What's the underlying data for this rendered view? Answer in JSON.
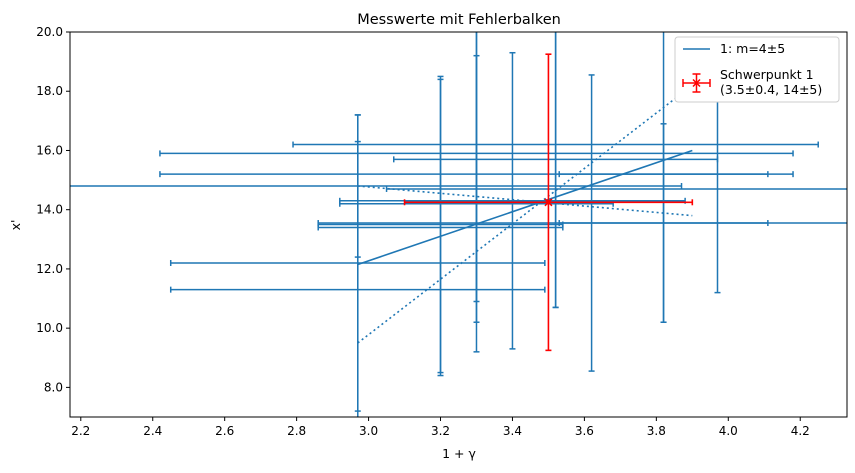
{
  "chart_data": {
    "type": "scatter",
    "title": "Messwerte mit Fehlerbalken",
    "xlabel": "1 + γ",
    "ylabel": "x'",
    "xlim": [
      2.17,
      4.33
    ],
    "ylim": [
      7.0,
      20.0
    ],
    "x_ticks": [
      2.2,
      2.4,
      2.6,
      2.8,
      3.0,
      3.2,
      3.4,
      3.6,
      3.8,
      4.0,
      4.2
    ],
    "y_ticks": [
      8.0,
      10.0,
      12.0,
      14.0,
      16.0,
      18.0,
      20.0
    ],
    "grid": false,
    "legend_position": "top-right",
    "colors": {
      "series": "#1f77b4",
      "centroid": "#ff0000"
    },
    "measurements": [
      {
        "x": 2.97,
        "y": 12.2,
        "xerr": 0.52,
        "yerr": 5.0
      },
      {
        "x": 2.97,
        "y": 11.3,
        "xerr": 0.52,
        "yerr": 5.0
      },
      {
        "x": 2.97,
        "y": 14.8,
        "xerr": 0.9,
        "yerr": 2.4
      },
      {
        "x": 3.2,
        "y": 13.4,
        "xerr": 0.34,
        "yerr": 5.0
      },
      {
        "x": 3.3,
        "y": 14.2,
        "xerr": 0.38,
        "yerr": 5.0
      },
      {
        "x": 3.3,
        "y": 15.2,
        "xerr": 0.88,
        "yerr": 5.0
      },
      {
        "x": 3.3,
        "y": 15.9,
        "xerr": 0.88,
        "yerr": 5.0
      },
      {
        "x": 3.52,
        "y": 15.7,
        "xerr": 0.45,
        "yerr": 5.0
      },
      {
        "x": 3.52,
        "y": 16.2,
        "xerr": 0.73,
        "yerr": 5.5
      },
      {
        "x": 3.82,
        "y": 13.55,
        "xerr": 0.29,
        "yerr": 3.35
      },
      {
        "x": 3.82,
        "y": 15.2,
        "xerr": 0.29,
        "yerr": 5.0
      },
      {
        "x": 3.2,
        "y": 13.5,
        "xerr": 0.34,
        "yerr": 5.0
      },
      {
        "x": 3.62,
        "y": 13.55,
        "xerr": 0.76,
        "yerr": 5.0
      },
      {
        "x": 3.4,
        "y": 14.3,
        "xerr": 0.48,
        "yerr": 5.0
      },
      {
        "x": 3.97,
        "y": 14.7,
        "xerr": 0.92,
        "yerr": 3.5
      }
    ],
    "fit_line": {
      "x": [
        2.97,
        3.9
      ],
      "y": [
        12.15,
        16.0
      ]
    },
    "fit_bounds": [
      {
        "x": [
          2.97,
          3.9
        ],
        "y": [
          9.5,
          18.2
        ]
      },
      {
        "x": [
          2.97,
          3.9
        ],
        "y": [
          14.8,
          13.8
        ]
      }
    ],
    "centroid": {
      "x": 3.5,
      "y": 14.25,
      "xerr": 0.4,
      "yerr": 5.0
    },
    "legend": {
      "fit_label": "1: m=4±5",
      "centroid_label_line1": "Schwerpunkt 1",
      "centroid_label_line2": "(3.5±0.4, 14±5)"
    }
  }
}
